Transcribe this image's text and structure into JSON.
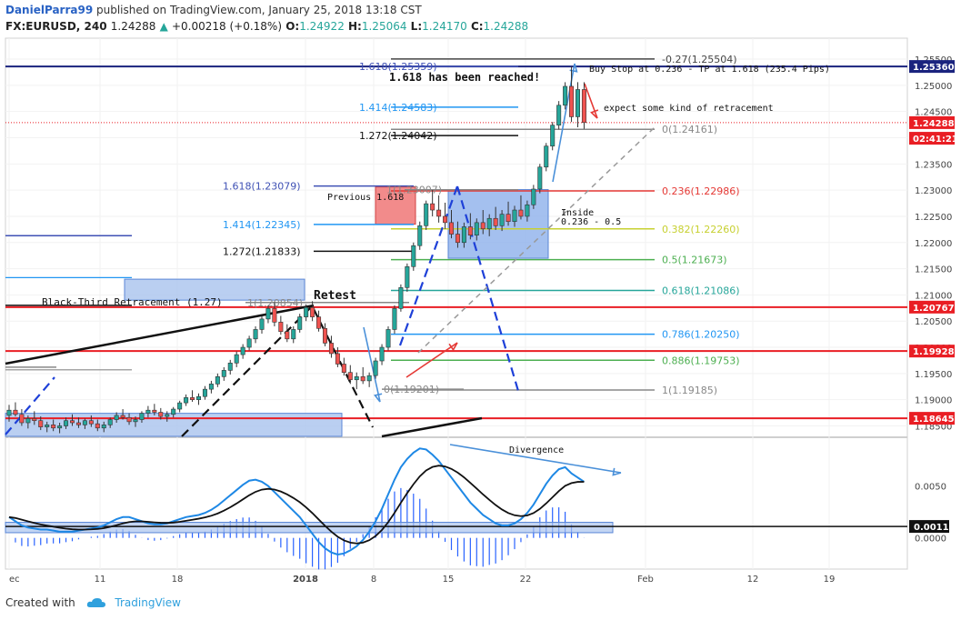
{
  "header": {
    "user": "DanielParra99",
    "published": "published on TradingView.com, January 25, 2018 13:18 CST",
    "symbol": "FX:EURUSD, 240",
    "last": "1.24288",
    "change": "+0.00218 (+0.18%)",
    "o_label": "O:",
    "o": "1.24922",
    "h_label": "H:",
    "h": "1.25064",
    "l_label": "L:",
    "l": "1.24170",
    "c_label": "C:",
    "c": "1.24288"
  },
  "footer": {
    "created_with": "Created with",
    "brand": "TradingView"
  },
  "colors": {
    "bull": "#26a69a",
    "bear": "#ef5350",
    "red_line": "#e91e24",
    "blue_box": "#6f9be6",
    "fib_red": "#e53935",
    "fib_yellow": "#c7d030",
    "fib_green": "#4caf50",
    "fib_teal": "#26a69a",
    "fib_blue": "#2196f3",
    "fib_grey": "#888888",
    "macd_line": "#1e88e5",
    "signal_line": "#111111",
    "histogram": "#2962ff"
  },
  "chart_data": {
    "type": "line",
    "title": "",
    "xlabel": "",
    "ylabel": "",
    "ylim": [
      1.183,
      1.259
    ],
    "price_ticks": [
      "1.25500",
      "1.25000",
      "1.24500",
      "1.24000",
      "1.23500",
      "1.23000",
      "1.22500",
      "1.22000",
      "1.21500",
      "1.21000",
      "1.20500",
      "1.20000",
      "1.19500",
      "1.19000",
      "1.18500"
    ],
    "x_ticks": [
      "ec",
      "11",
      "18",
      "2018",
      "8",
      "15",
      "22",
      "Feb",
      "12",
      "19"
    ],
    "price_labels": [
      {
        "label": "1.25360",
        "value": 1.2536,
        "color": "#1a237e"
      },
      {
        "label": "1.24288",
        "value": 1.24288,
        "color": "#e91e24"
      },
      {
        "label": "02:41:21",
        "value": 1.2399,
        "color": "#e91e24"
      },
      {
        "label": "1.20767",
        "value": 1.20767,
        "color": "#e91e24"
      },
      {
        "label": "1.19928",
        "value": 1.19928,
        "color": "#e91e24"
      },
      {
        "label": "1.18645",
        "value": 1.18645,
        "color": "#e91e24"
      }
    ],
    "horizontal_lines": [
      {
        "value": 1.2536,
        "color": "#1a237e"
      },
      {
        "value": 1.20767,
        "color": "#e91e24"
      },
      {
        "value": 1.19928,
        "color": "#e91e24"
      },
      {
        "value": 1.18645,
        "color": "#e91e24"
      }
    ],
    "fib_retracement": [
      {
        "label": "-0.27(1.25504)",
        "value": 1.25504,
        "color": "#444444"
      },
      {
        "label": "0(1.24161)",
        "value": 1.24161,
        "color": "#888888"
      },
      {
        "label": "0.236(1.22986)",
        "value": 1.22986,
        "color": "#e53935"
      },
      {
        "label": "0.382(1.22260)",
        "value": 1.2226,
        "color": "#c7d030"
      },
      {
        "label": "0.5(1.21673)",
        "value": 1.21673,
        "color": "#4caf50"
      },
      {
        "label": "0.618(1.21086)",
        "value": 1.21086,
        "color": "#26a69a"
      },
      {
        "label": "0.786(1.20250)",
        "value": 1.2025,
        "color": "#2196f3"
      },
      {
        "label": "0.886(1.19753)",
        "value": 1.19753,
        "color": "#4caf50"
      },
      {
        "label": "1(1.19185)",
        "value": 1.19185,
        "color": "#888888"
      }
    ],
    "fib_extensions": [
      {
        "label": "1.618(1.25359)",
        "value": 1.25359,
        "color": "#3f51b5"
      },
      {
        "label": "1.414(1.24583)",
        "value": 1.24583,
        "color": "#2196f3"
      },
      {
        "label": "1.272(1.24042)",
        "value": 1.24042,
        "color": "#111111"
      },
      {
        "label": "1.618(1.23079)",
        "value": 1.23079,
        "color": "#3f51b5"
      },
      {
        "label": "1.414(1.22345)",
        "value": 1.22345,
        "color": "#2196f3"
      },
      {
        "label": "1.272(1.21833)",
        "value": 1.21833,
        "color": "#111111"
      },
      {
        "label": "1(1.20854)",
        "value": 1.20854,
        "color": "#888888"
      },
      {
        "label": "0(1.19201)",
        "value": 1.19201,
        "color": "#888888"
      },
      {
        "label": "1(1.23007)",
        "value": 1.23007,
        "color": "#888888"
      }
    ],
    "annotations": {
      "buy_stop": "Buy Stop at 0.236 - TP at 1.618 (235.4 Pips)",
      "reached": "1.618 has been reached!",
      "expect": "expect some kind of retracement",
      "previous": "Previous 1.618",
      "inside1": "Inside",
      "inside2": "0.236 - 0.5",
      "black_third": "Black-Third Retracement (1.27)",
      "retest": "Retest",
      "divergence": "Divergence"
    },
    "candles": [
      [
        1.187,
        1.189,
        1.1858,
        1.188
      ],
      [
        1.188,
        1.1895,
        1.1868,
        1.1872
      ],
      [
        1.1872,
        1.1882,
        1.185,
        1.1856
      ],
      [
        1.1856,
        1.187,
        1.1845,
        1.1864
      ],
      [
        1.1864,
        1.1878,
        1.1852,
        1.186
      ],
      [
        1.186,
        1.1868,
        1.1842,
        1.1848
      ],
      [
        1.1848,
        1.1858,
        1.1838,
        1.1852
      ],
      [
        1.1852,
        1.1862,
        1.184,
        1.1846
      ],
      [
        1.1846,
        1.1856,
        1.1836,
        1.185
      ],
      [
        1.185,
        1.1866,
        1.1844,
        1.186
      ],
      [
        1.186,
        1.1872,
        1.185,
        1.1856
      ],
      [
        1.1856,
        1.1866,
        1.1846,
        1.1852
      ],
      [
        1.1852,
        1.1864,
        1.1844,
        1.186
      ],
      [
        1.186,
        1.187,
        1.1848,
        1.1854
      ],
      [
        1.1854,
        1.1862,
        1.184,
        1.1846
      ],
      [
        1.1846,
        1.1858,
        1.1838,
        1.1852
      ],
      [
        1.1852,
        1.1866,
        1.1846,
        1.1862
      ],
      [
        1.1862,
        1.1876,
        1.1856,
        1.187
      ],
      [
        1.187,
        1.1882,
        1.1862,
        1.1866
      ],
      [
        1.1866,
        1.1874,
        1.1852,
        1.1858
      ],
      [
        1.1858,
        1.1868,
        1.1848,
        1.1862
      ],
      [
        1.1862,
        1.1878,
        1.1856,
        1.1874
      ],
      [
        1.1874,
        1.1888,
        1.1866,
        1.188
      ],
      [
        1.188,
        1.1892,
        1.187,
        1.1876
      ],
      [
        1.1876,
        1.1884,
        1.1862,
        1.1868
      ],
      [
        1.1868,
        1.1878,
        1.1858,
        1.1872
      ],
      [
        1.1872,
        1.1886,
        1.1866,
        1.1882
      ],
      [
        1.1882,
        1.1898,
        1.1876,
        1.1894
      ],
      [
        1.1894,
        1.191,
        1.1888,
        1.1904
      ],
      [
        1.1904,
        1.1918,
        1.1896,
        1.19
      ],
      [
        1.19,
        1.1912,
        1.189,
        1.1906
      ],
      [
        1.1906,
        1.1926,
        1.19,
        1.192
      ],
      [
        1.192,
        1.1936,
        1.1912,
        1.193
      ],
      [
        1.193,
        1.195,
        1.1924,
        1.1944
      ],
      [
        1.1944,
        1.1962,
        1.1936,
        1.1956
      ],
      [
        1.1956,
        1.1976,
        1.1948,
        1.197
      ],
      [
        1.197,
        1.1992,
        1.1962,
        1.1986
      ],
      [
        1.1986,
        1.2006,
        1.1978,
        1.2
      ],
      [
        1.2,
        1.2022,
        1.1994,
        1.2016
      ],
      [
        1.2016,
        1.204,
        1.2008,
        1.2034
      ],
      [
        1.2034,
        1.206,
        1.2026,
        1.2054
      ],
      [
        1.2054,
        1.208,
        1.2046,
        1.2074
      ],
      [
        1.2074,
        1.2086,
        1.204,
        1.2048
      ],
      [
        1.2048,
        1.206,
        1.2024,
        1.203
      ],
      [
        1.203,
        1.2044,
        1.201,
        1.2016
      ],
      [
        1.2016,
        1.204,
        1.2008,
        1.2034
      ],
      [
        1.2034,
        1.2064,
        1.2028,
        1.2058
      ],
      [
        1.2058,
        1.2082,
        1.205,
        1.2076
      ],
      [
        1.2076,
        1.2088,
        1.205,
        1.2058
      ],
      [
        1.2058,
        1.207,
        1.203,
        1.2036
      ],
      [
        1.2036,
        1.2046,
        1.2002,
        1.2008
      ],
      [
        1.2008,
        1.2022,
        1.198,
        1.1988
      ],
      [
        1.1988,
        1.2,
        1.1962,
        1.1968
      ],
      [
        1.1968,
        1.198,
        1.1946,
        1.1952
      ],
      [
        1.1952,
        1.1966,
        1.193,
        1.1938
      ],
      [
        1.1938,
        1.1952,
        1.192,
        1.1944
      ],
      [
        1.1944,
        1.1962,
        1.193,
        1.1936
      ],
      [
        1.1936,
        1.1952,
        1.1924,
        1.1946
      ],
      [
        1.1946,
        1.198,
        1.194,
        1.1974
      ],
      [
        1.1974,
        1.2006,
        1.1966,
        1.2
      ],
      [
        1.2,
        1.204,
        1.1994,
        1.2034
      ],
      [
        1.2034,
        1.208,
        1.2026,
        1.2074
      ],
      [
        1.2074,
        1.212,
        1.2068,
        1.2114
      ],
      [
        1.2114,
        1.216,
        1.2106,
        1.2154
      ],
      [
        1.2154,
        1.22,
        1.2146,
        1.2194
      ],
      [
        1.2194,
        1.224,
        1.2186,
        1.2232
      ],
      [
        1.2232,
        1.228,
        1.2224,
        1.2274
      ],
      [
        1.2274,
        1.23,
        1.225,
        1.2262
      ],
      [
        1.2262,
        1.229,
        1.2238,
        1.225
      ],
      [
        1.225,
        1.2276,
        1.2226,
        1.2238
      ],
      [
        1.2238,
        1.2262,
        1.2208,
        1.2216
      ],
      [
        1.2216,
        1.224,
        1.219,
        1.22
      ],
      [
        1.22,
        1.2238,
        1.219,
        1.223
      ],
      [
        1.223,
        1.2256,
        1.2206,
        1.2214
      ],
      [
        1.2214,
        1.2246,
        1.2204,
        1.2238
      ],
      [
        1.2238,
        1.2262,
        1.2216,
        1.2226
      ],
      [
        1.2226,
        1.2254,
        1.2212,
        1.2246
      ],
      [
        1.2246,
        1.2268,
        1.2224,
        1.2232
      ],
      [
        1.2232,
        1.2262,
        1.2222,
        1.2254
      ],
      [
        1.2254,
        1.2278,
        1.2232,
        1.224
      ],
      [
        1.224,
        1.227,
        1.223,
        1.2262
      ],
      [
        1.2262,
        1.229,
        1.2244,
        1.225
      ],
      [
        1.225,
        1.228,
        1.224,
        1.2272
      ],
      [
        1.2272,
        1.231,
        1.2264,
        1.2302
      ],
      [
        1.2302,
        1.235,
        1.2294,
        1.2344
      ],
      [
        1.2344,
        1.239,
        1.2336,
        1.2384
      ],
      [
        1.2384,
        1.243,
        1.2376,
        1.2424
      ],
      [
        1.2424,
        1.247,
        1.2416,
        1.2462
      ],
      [
        1.2462,
        1.2506,
        1.2454,
        1.2498
      ],
      [
        1.2498,
        1.2536,
        1.243,
        1.244
      ],
      [
        1.244,
        1.2506,
        1.242,
        1.2492
      ],
      [
        1.2492,
        1.2506,
        1.2417,
        1.2429
      ]
    ],
    "macd": [
      0.002,
      0.0016,
      0.0012,
      0.001,
      0.0009,
      0.0008,
      0.0008,
      0.0007,
      0.0006,
      0.0006,
      0.0006,
      0.0007,
      0.0008,
      0.0009,
      0.001,
      0.0012,
      0.0015,
      0.0018,
      0.002,
      0.002,
      0.0018,
      0.0016,
      0.0014,
      0.0013,
      0.0013,
      0.0014,
      0.0016,
      0.0018,
      0.002,
      0.0021,
      0.0022,
      0.0024,
      0.0027,
      0.0031,
      0.0036,
      0.0041,
      0.0046,
      0.0051,
      0.0055,
      0.0056,
      0.0054,
      0.005,
      0.0044,
      0.0038,
      0.0032,
      0.0026,
      0.002,
      0.0012,
      0.0004,
      -0.0004,
      -0.001,
      -0.0014,
      -0.0016,
      -0.0015,
      -0.0012,
      -0.0008,
      -0.0002,
      0.0006,
      0.0016,
      0.0028,
      0.0042,
      0.0056,
      0.0068,
      0.0076,
      0.0082,
      0.0086,
      0.0085,
      0.008,
      0.0074,
      0.0066,
      0.0058,
      0.005,
      0.0042,
      0.0034,
      0.0028,
      0.0022,
      0.0018,
      0.0014,
      0.0012,
      0.0012,
      0.0014,
      0.0018,
      0.0024,
      0.0032,
      0.0042,
      0.0052,
      0.006,
      0.0066,
      0.0068,
      0.0062,
      0.0058,
      0.0054
    ],
    "macd_ylim": [
      -0.003,
      0.0095
    ],
    "macd_ticks": [
      "0.0050",
      "0.0000"
    ],
    "macd_labels": [
      {
        "label": "0.0011",
        "value": 0.0011
      }
    ]
  }
}
